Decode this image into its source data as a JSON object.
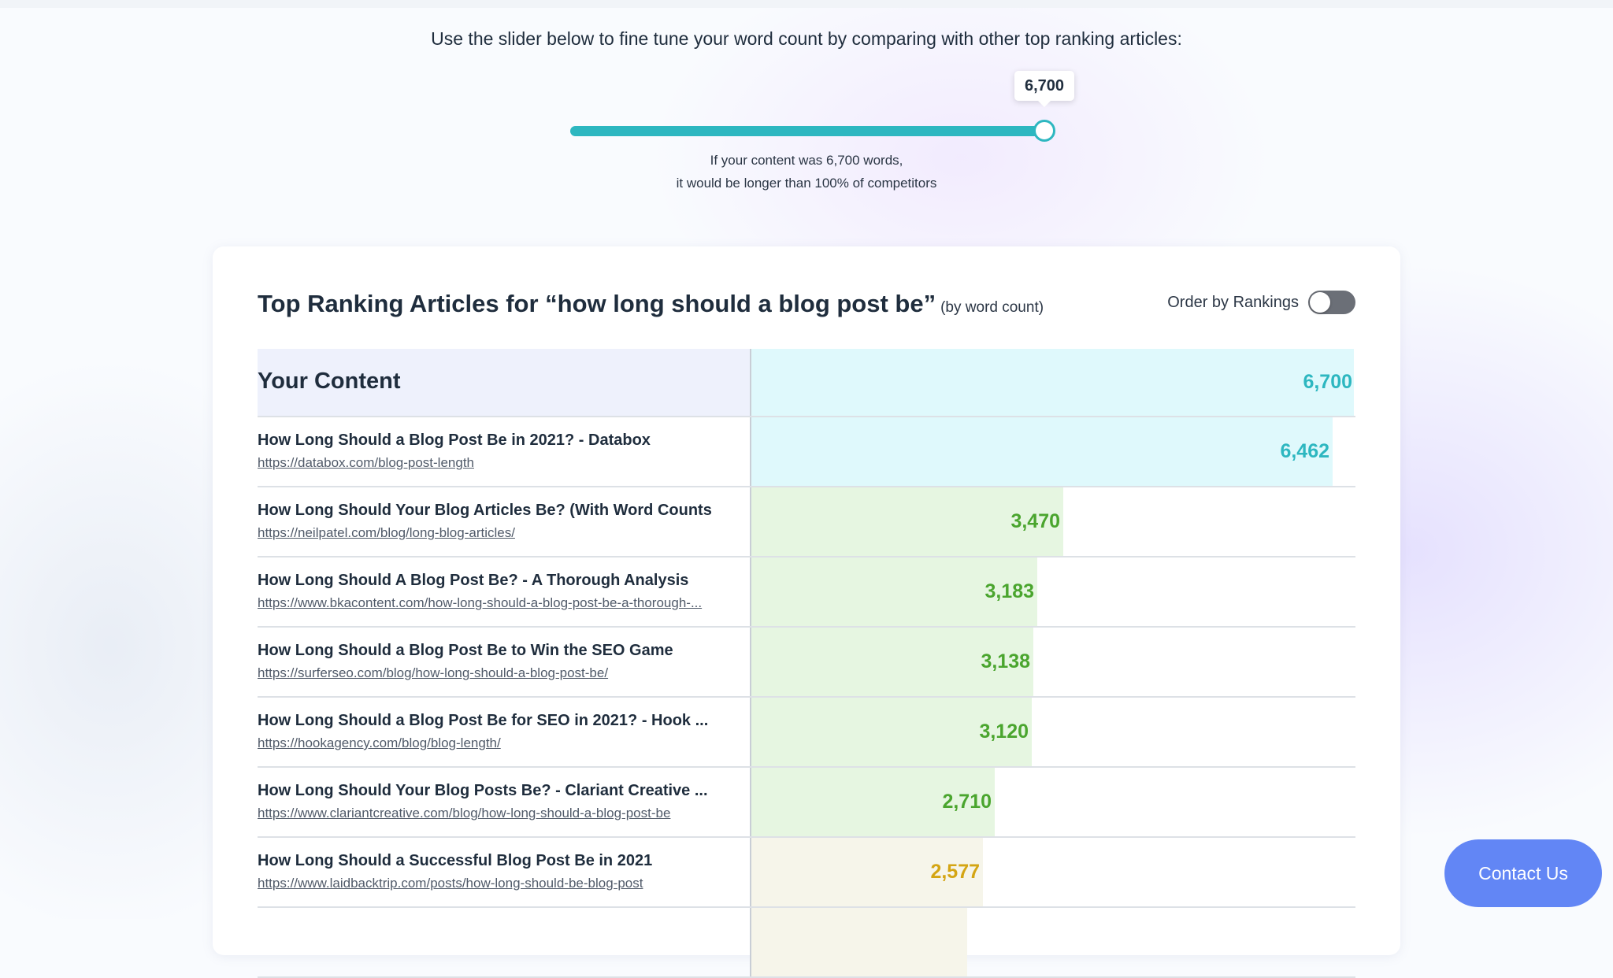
{
  "intro": "Use the slider below to fine tune your word count by comparing with other top ranking articles:",
  "slider": {
    "value_label": "6,700",
    "value": 6700,
    "position_fraction": 1.0,
    "caption_line1": "If your content was 6,700 words,",
    "caption_line2": "it would be longer than 100% of competitors",
    "rail_color": "#2db7c0"
  },
  "card": {
    "title": "Top Ranking Articles for “how long should a blog post be”",
    "subtitle": "(by word count)",
    "order_label": "Order by Rankings",
    "order_toggle_on": false
  },
  "your_content": {
    "label": "Your Content",
    "value": 6700,
    "value_label": "6,700"
  },
  "articles": [
    {
      "title": "How Long Should a Blog Post Be in 2021? - Databox",
      "url": "https://databox.com/blog-post-length",
      "value": 6462,
      "value_label": "6,462",
      "tier": "top"
    },
    {
      "title": "How Long Should Your Blog Articles Be? (With Word Counts",
      "url": "https://neilpatel.com/blog/long-blog-articles/",
      "value": 3470,
      "value_label": "3,470",
      "tier": "mid"
    },
    {
      "title": "How Long Should A Blog Post Be? - A Thorough Analysis",
      "url": "https://www.bkacontent.com/how-long-should-a-blog-post-be-a-thorough-...",
      "value": 3183,
      "value_label": "3,183",
      "tier": "mid"
    },
    {
      "title": "How Long Should a Blog Post Be to Win the SEO Game",
      "url": "https://surferseo.com/blog/how-long-should-a-blog-post-be/",
      "value": 3138,
      "value_label": "3,138",
      "tier": "mid"
    },
    {
      "title": "How Long Should a Blog Post Be for SEO in 2021? - Hook ...",
      "url": "https://hookagency.com/blog/blog-length/",
      "value": 3120,
      "value_label": "3,120",
      "tier": "mid"
    },
    {
      "title": "How Long Should Your Blog Posts Be? - Clariant Creative ...",
      "url": "https://www.clariantcreative.com/blog/how-long-should-a-blog-post-be",
      "value": 2710,
      "value_label": "2,710",
      "tier": "mid"
    },
    {
      "title": "How Long Should a Successful Blog Post Be in 2021",
      "url": "https://www.laidbacktrip.com/posts/how-long-should-be-blog-post",
      "value": 2577,
      "value_label": "2,577",
      "tier": "low"
    },
    {
      "title": "",
      "url": "",
      "value": 2400,
      "value_label": "",
      "tier": "low"
    }
  ],
  "scale_max": 6700,
  "colors": {
    "top_bar": "#dff9fc",
    "top_text": "#2db7c0",
    "mid_bar": "#e6f6e1",
    "mid_text": "#4aa52e",
    "low_bar": "#f6f5ea",
    "low_text": "#d4a514",
    "contact_bg": "#6286f5"
  },
  "contact": {
    "label": "Contact Us"
  }
}
